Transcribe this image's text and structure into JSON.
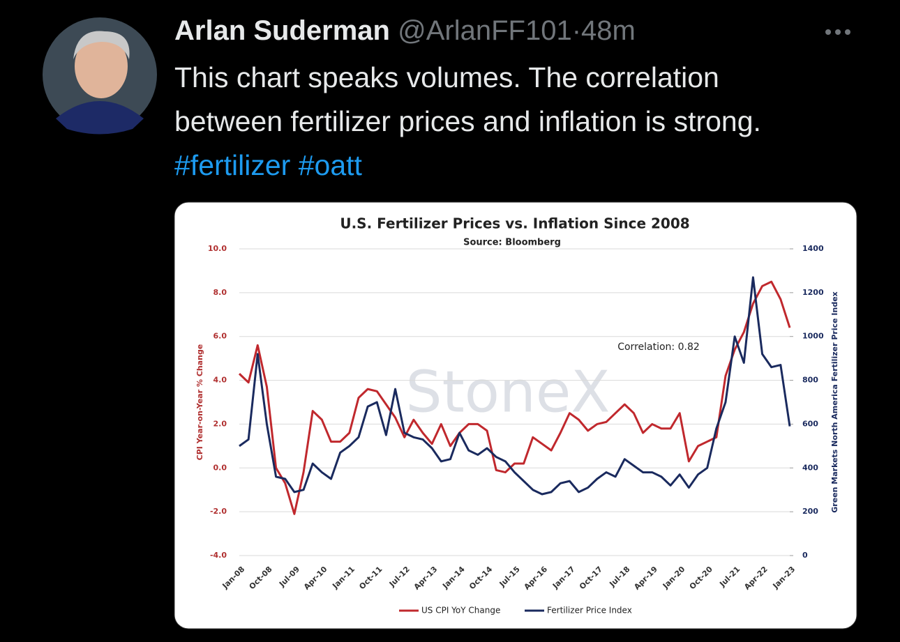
{
  "tweet": {
    "author_name": "Arlan Suderman",
    "handle": "@ArlanFF101",
    "separator": "·",
    "time": "48m",
    "text": "This chart speaks volumes. The correlation between fertilizer prices and inflation is strong.",
    "hashtags": [
      "#fertilizer",
      "#oatt"
    ]
  },
  "chart_data": {
    "type": "line",
    "title": "U.S. Fertilizer Prices vs. Inflation Since 2008",
    "subtitle": "Source: Bloomberg",
    "y_label": "CPI Year-on-Year % Change",
    "y2_label": "Green Markets North America Fertilizer Price Index",
    "annotation": "Correlation: 0.82",
    "watermark": "StoneX",
    "categories": [
      "Jan-08",
      null,
      null,
      "Oct-08",
      null,
      null,
      "Jul-09",
      null,
      null,
      "Apr-10",
      null,
      null,
      "Jan-11",
      null,
      null,
      "Oct-11",
      null,
      null,
      "Jul-12",
      null,
      null,
      "Apr-13",
      null,
      null,
      "Jan-14",
      null,
      null,
      "Oct-14",
      null,
      null,
      "Jul-15",
      null,
      null,
      "Apr-16",
      null,
      null,
      "Jan-17",
      null,
      null,
      "Oct-17",
      null,
      null,
      "Jul-18",
      null,
      null,
      "Apr-19",
      null,
      null,
      "Jan-20",
      null,
      null,
      "Oct-20",
      null,
      null,
      "Jul-21",
      null,
      null,
      "Apr-22",
      null,
      null,
      "Jan-23"
    ],
    "series": [
      {
        "name": "US CPI YoY Change",
        "color": "#c0282d",
        "axis": "y",
        "values": [
          4.3,
          3.9,
          5.6,
          3.7,
          0.0,
          -0.7,
          -2.1,
          -0.2,
          2.6,
          2.2,
          1.2,
          1.2,
          1.6,
          3.2,
          3.6,
          3.5,
          2.9,
          2.3,
          1.4,
          2.2,
          1.6,
          1.1,
          2.0,
          1.0,
          1.6,
          2.0,
          2.0,
          1.7,
          -0.1,
          -0.2,
          0.2,
          0.2,
          1.4,
          1.1,
          0.8,
          1.6,
          2.5,
          2.2,
          1.7,
          2.0,
          2.1,
          2.5,
          2.9,
          2.5,
          1.6,
          2.0,
          1.8,
          1.8,
          2.5,
          0.3,
          1.0,
          1.2,
          1.4,
          4.2,
          5.4,
          6.2,
          7.5,
          8.3,
          8.5,
          7.7,
          6.4
        ]
      },
      {
        "name": "Fertilizer Price Index",
        "color": "#1a2a5e",
        "axis": "y2",
        "values": [
          500,
          530,
          920,
          600,
          360,
          350,
          290,
          300,
          420,
          380,
          350,
          470,
          500,
          540,
          680,
          700,
          550,
          760,
          560,
          540,
          530,
          490,
          430,
          440,
          560,
          480,
          460,
          490,
          450,
          430,
          380,
          340,
          300,
          280,
          290,
          330,
          340,
          290,
          310,
          350,
          380,
          360,
          440,
          410,
          380,
          380,
          360,
          320,
          370,
          310,
          370,
          400,
          580,
          700,
          1000,
          880,
          1270,
          920,
          860,
          870,
          590
        ]
      }
    ],
    "ylim": [
      -4,
      10
    ],
    "yticks": [
      {
        "value": -4,
        "label": "-4.0"
      },
      {
        "value": -2,
        "label": "-2.0"
      },
      {
        "value": 0,
        "label": "0.0"
      },
      {
        "value": 2,
        "label": "2.0"
      },
      {
        "value": 4,
        "label": "4.0"
      },
      {
        "value": 6,
        "label": "6.0"
      },
      {
        "value": 8,
        "label": "8.0"
      },
      {
        "value": 10,
        "label": "10.0"
      }
    ],
    "y2lim": [
      0,
      1400
    ],
    "y2ticks": [
      0,
      200,
      400,
      600,
      800,
      1000,
      1200,
      1400
    ],
    "grid": true
  }
}
